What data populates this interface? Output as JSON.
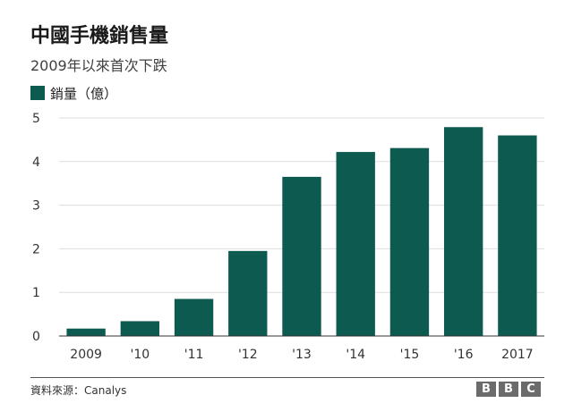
{
  "title": "中國手機銷售量",
  "subtitle": "2009年以來首次下跌",
  "legend": {
    "label": "銷量（億）",
    "color": "#0d5a50"
  },
  "source": "資料來源：Canalys",
  "logo": [
    "B",
    "B",
    "C"
  ],
  "chart_data": {
    "type": "bar",
    "categories": [
      "2009",
      "'10",
      "'11",
      "'12",
      "'13",
      "'14",
      "'15",
      "'16",
      "2017"
    ],
    "series": [
      {
        "name": "銷量（億）",
        "values": [
          0.17,
          0.34,
          0.85,
          1.95,
          3.65,
          4.22,
          4.31,
          4.79,
          4.6
        ]
      }
    ],
    "ylim": [
      0,
      5
    ],
    "yticks": [
      0,
      1,
      2,
      3,
      4,
      5
    ],
    "grid": true,
    "bar_color": "#0d5a50",
    "legend_position": "top-left"
  }
}
